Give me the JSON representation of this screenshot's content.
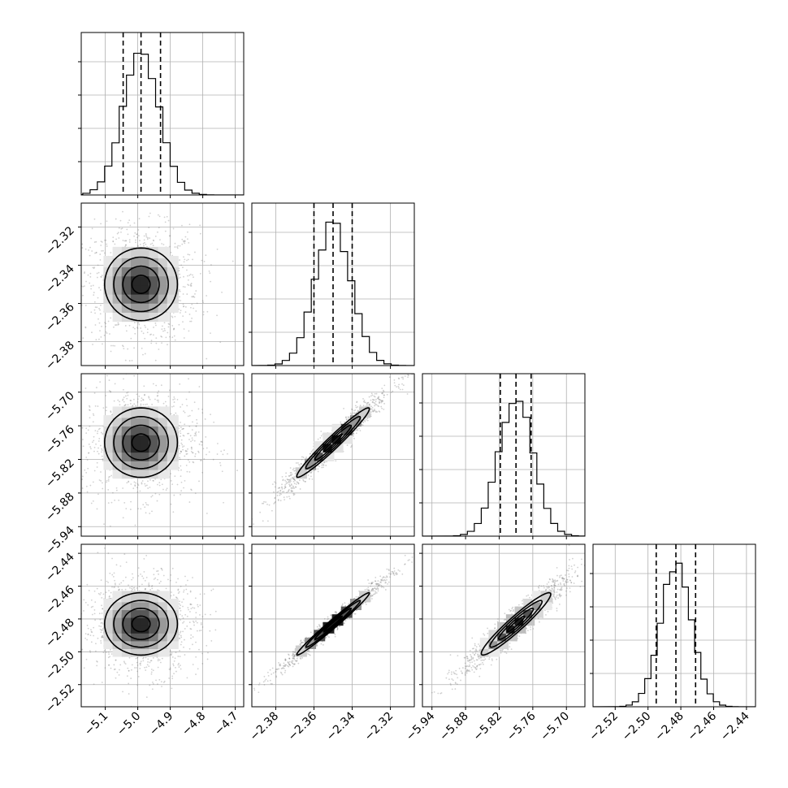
{
  "chart_data": {
    "type": "corner",
    "parameters": [
      {
        "ticks": [
          -5.1,
          -5.0,
          -4.9,
          -4.8,
          -4.7
        ],
        "tick_labels": [
          "−5.1",
          "−5.0",
          "−4.9",
          "−4.8",
          "−4.7"
        ],
        "range": [
          -5.174,
          -4.674
        ],
        "mean": -4.99,
        "sd": 0.056,
        "quantiles": [
          -5.045,
          -4.99,
          -4.93
        ],
        "hist_ymax": 0.08
      },
      {
        "ticks": [
          -2.38,
          -2.36,
          -2.34,
          -2.32
        ],
        "tick_labels": [
          "−2.38",
          "−2.36",
          "−2.34",
          "−2.32"
        ],
        "range": [
          -2.3925,
          -2.3075
        ],
        "mean": -2.35,
        "sd": 0.0095,
        "quantiles": [
          -2.36,
          -2.35,
          -2.34
        ],
        "hist_ymax": 0.08
      },
      {
        "ticks": [
          -5.94,
          -5.88,
          -5.82,
          -5.76,
          -5.7
        ],
        "tick_labels": [
          "−5.94",
          "−5.88",
          "−5.82",
          "−5.76",
          "−5.70"
        ],
        "range": [
          -5.957,
          -5.667
        ],
        "mean": -5.79,
        "sd": 0.031,
        "quantiles": [
          -5.818,
          -5.79,
          -5.763
        ],
        "hist_ymax": 0.08
      },
      {
        "ticks": [
          -2.52,
          -2.5,
          -2.48,
          -2.46,
          -2.44
        ],
        "tick_labels": [
          "−2.52",
          "−2.50",
          "−2.48",
          "−2.46",
          "−2.44"
        ],
        "range": [
          -2.5335,
          -2.4345
        ],
        "mean": -2.483,
        "sd": 0.0095,
        "quantiles": [
          -2.495,
          -2.483,
          -2.471
        ],
        "hist_ymax": 0.08
      }
    ],
    "correlations": [
      [
        1,
        0,
        0,
        0
      ],
      [
        0,
        1,
        0.97,
        0.985
      ],
      [
        0,
        0.97,
        1,
        0.95
      ],
      [
        0,
        0.985,
        0.95,
        1
      ]
    ],
    "hist_bins": 20,
    "grid": true,
    "quantile_lines": "dashed",
    "contour_levels": [
      0.5,
      1.0,
      1.5,
      2.0
    ]
  }
}
